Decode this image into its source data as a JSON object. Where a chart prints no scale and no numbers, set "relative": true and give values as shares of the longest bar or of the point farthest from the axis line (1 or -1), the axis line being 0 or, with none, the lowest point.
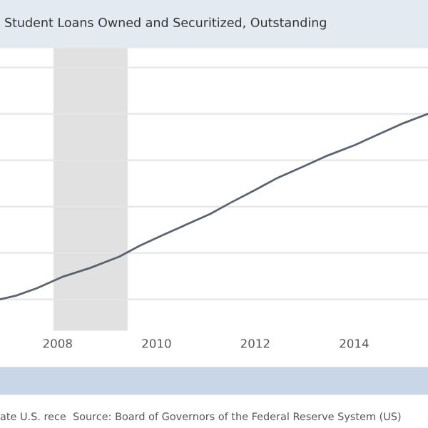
{
  "chart_data": {
    "type": "line",
    "title": "Student Loans Owned and Securitized, Outstanding",
    "relative": true,
    "x": [
      "2006-11",
      "2007-03",
      "2007-08",
      "2008-02",
      "2008-09",
      "2009-04",
      "2009-09",
      "2010-03",
      "2010-08",
      "2011-02",
      "2011-07",
      "2012-01",
      "2012-06",
      "2013-01",
      "2013-06",
      "2014-01",
      "2014-06",
      "2015-01",
      "2015-07"
    ],
    "series": [
      {
        "color": "#5a6470",
        "values": [
          0,
          0.02,
          0.06,
          0.12,
          0.17,
          0.23,
          0.29,
          0.35,
          0.4,
          0.46,
          0.52,
          0.59,
          0.65,
          0.72,
          0.77,
          0.83,
          0.88,
          0.95,
          1.0
        ]
      }
    ],
    "xlim": [
      "2006-11",
      "2015-07"
    ],
    "xticks": [
      {
        "value": "2008",
        "label": "2008"
      },
      {
        "value": "2010",
        "label": "2010"
      },
      {
        "value": "2012",
        "label": "2012"
      },
      {
        "value": "2014",
        "label": "2014"
      }
    ],
    "bands": [
      {
        "axis": "x",
        "from": "2007-12",
        "to": "2009-06",
        "color": "#e1e1e1"
      }
    ],
    "grid": "y",
    "legend": false,
    "marker": "none",
    "line_style": "solid",
    "annotations": [
      "ate U.S. rece",
      "Source: Board of Governors of the Federal Reserve System (US)"
    ]
  }
}
